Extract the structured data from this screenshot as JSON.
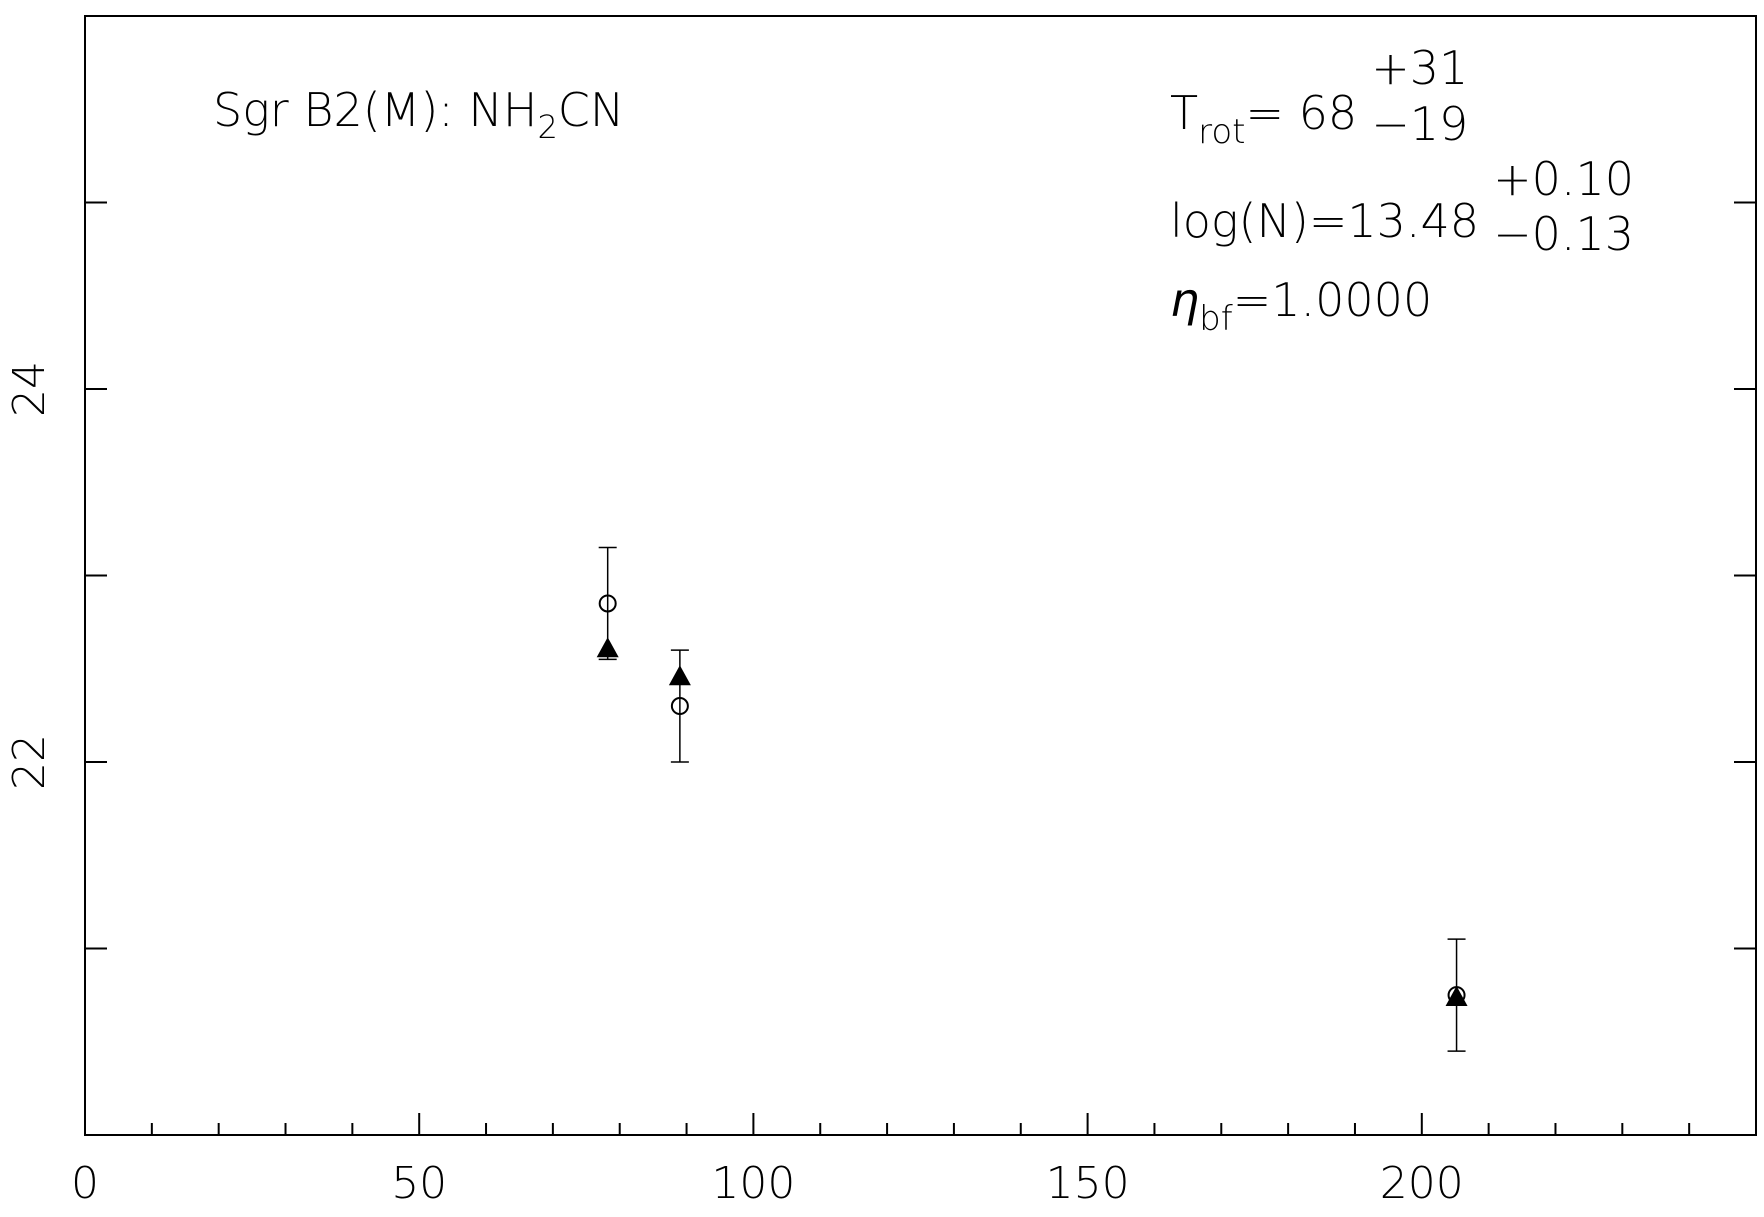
{
  "chart_data": {
    "type": "scatter",
    "title": {
      "main": "Sgr B2(M): NH",
      "sub": "2",
      "tail": "CN"
    },
    "annotations": [
      {
        "symbol": "T",
        "sub": "rot",
        "text": "= 68",
        "plus": "+31",
        "minus": "−19"
      },
      {
        "text": "log(N)=13.48",
        "plus": "+0.10",
        "minus": "−0.13"
      },
      {
        "symbol": "η",
        "sub": "bf",
        "text": "=1.0000"
      }
    ],
    "x": [
      78.2,
      89.0,
      205.2
    ],
    "series": [
      {
        "marker": "circle",
        "color": "#000000",
        "values": [
          22.85,
          22.3,
          20.75
        ],
        "errors": [
          0.3,
          0.3,
          0.3
        ]
      },
      {
        "marker": "triangle",
        "color": "#000000",
        "values": [
          22.61,
          22.46,
          20.74
        ]
      }
    ],
    "xlim": [
      0,
      250
    ],
    "xticks": [
      0,
      50,
      100,
      150,
      200
    ],
    "xminor": [
      10,
      20,
      30,
      40,
      60,
      70,
      80,
      90,
      110,
      120,
      130,
      140,
      160,
      170,
      180,
      190,
      210,
      220,
      230,
      240
    ],
    "ylim": [
      20,
      26
    ],
    "yticks": [
      22,
      24
    ],
    "yminor": [
      21,
      23,
      25
    ]
  }
}
